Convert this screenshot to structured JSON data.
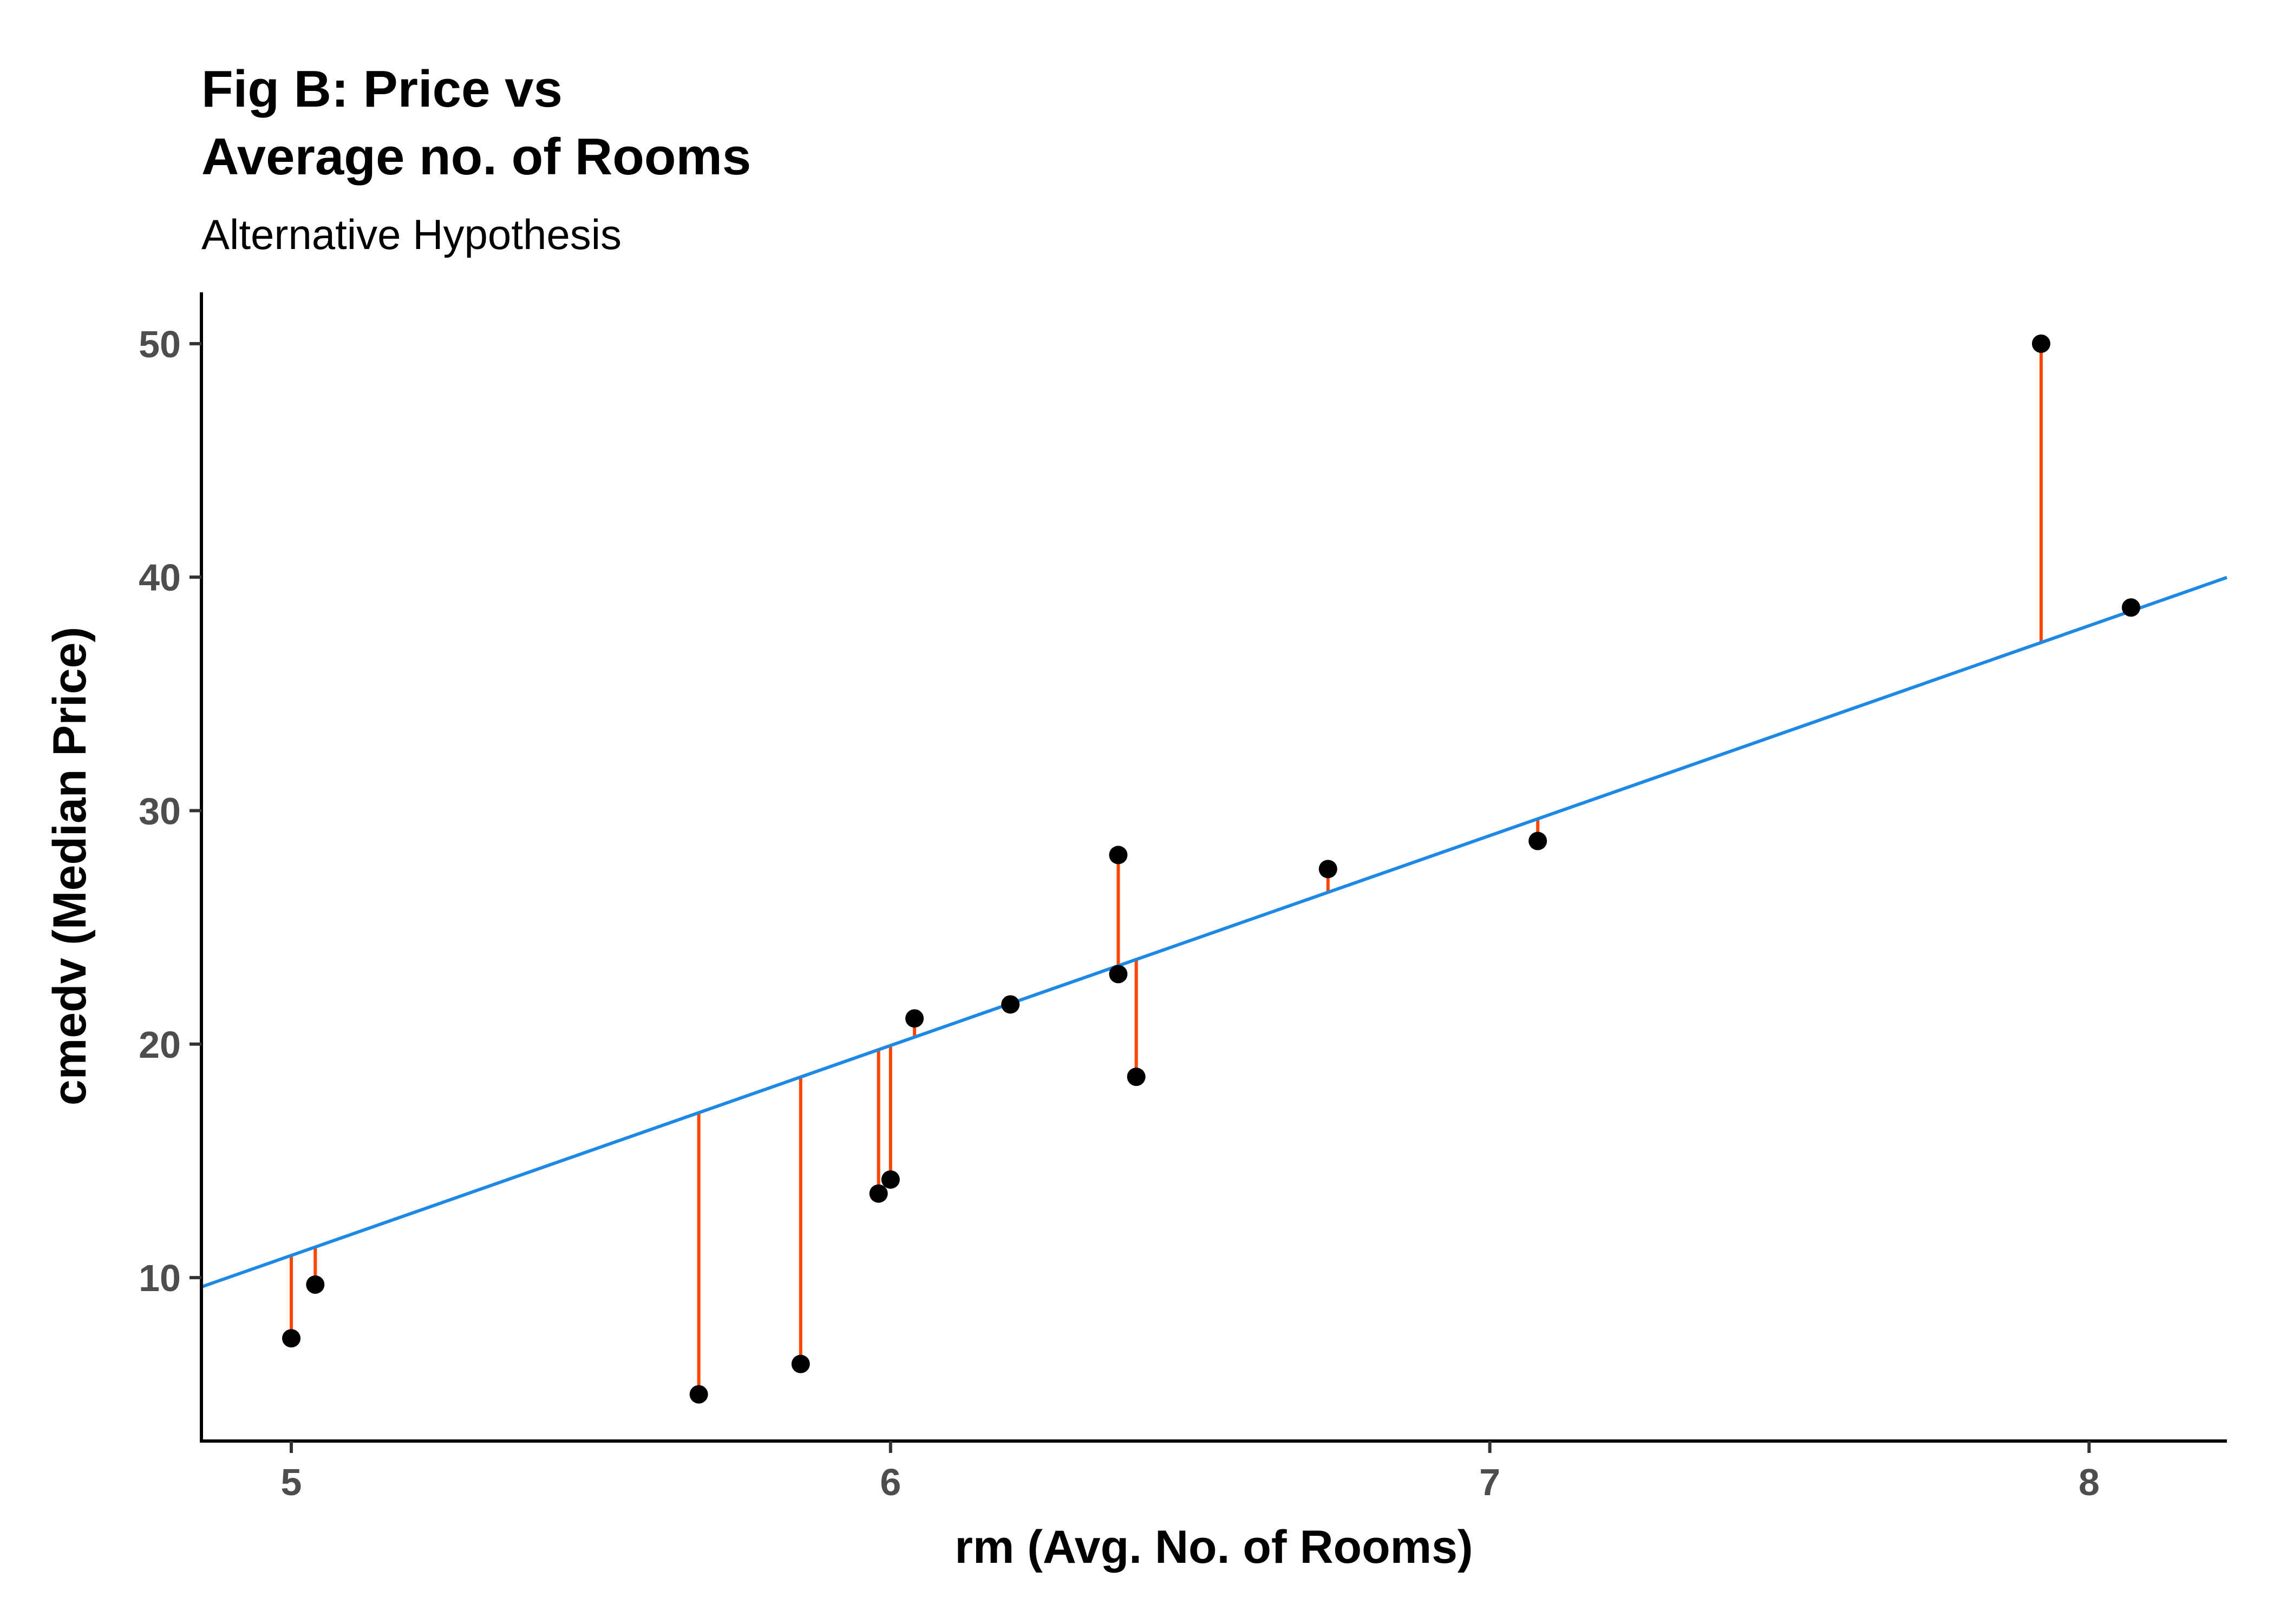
{
  "chart_data": {
    "type": "scatter",
    "title_line1": "Fig B: Price vs",
    "title_line2": "Average no. of Rooms",
    "subtitle": "Alternative Hypothesis",
    "xlabel": "rm (Avg. No. of Rooms)",
    "ylabel": "cmedv (Median Price)",
    "xlim": [
      4.85,
      8.23
    ],
    "ylim": [
      3.0,
      52.2
    ],
    "xticks": [
      5,
      6,
      7,
      8
    ],
    "yticks": [
      10,
      20,
      30,
      40,
      50
    ],
    "grid": false,
    "regression_line": {
      "intercept": -34.0,
      "slope": 8.99,
      "color": "#1E88E5"
    },
    "residual_color": "#FF4500",
    "point_color": "#000000",
    "points": [
      {
        "x": 5.0,
        "y": 7.4
      },
      {
        "x": 5.04,
        "y": 9.7
      },
      {
        "x": 5.68,
        "y": 5.0
      },
      {
        "x": 5.85,
        "y": 6.3
      },
      {
        "x": 5.98,
        "y": 13.6
      },
      {
        "x": 6.0,
        "y": 14.2
      },
      {
        "x": 6.04,
        "y": 21.1
      },
      {
        "x": 6.2,
        "y": 21.7
      },
      {
        "x": 6.38,
        "y": 28.1
      },
      {
        "x": 6.38,
        "y": 23.0
      },
      {
        "x": 6.41,
        "y": 18.6
      },
      {
        "x": 6.73,
        "y": 27.5
      },
      {
        "x": 7.08,
        "y": 28.7
      },
      {
        "x": 7.92,
        "y": 50.0
      },
      {
        "x": 8.07,
        "y": 38.7
      }
    ]
  }
}
